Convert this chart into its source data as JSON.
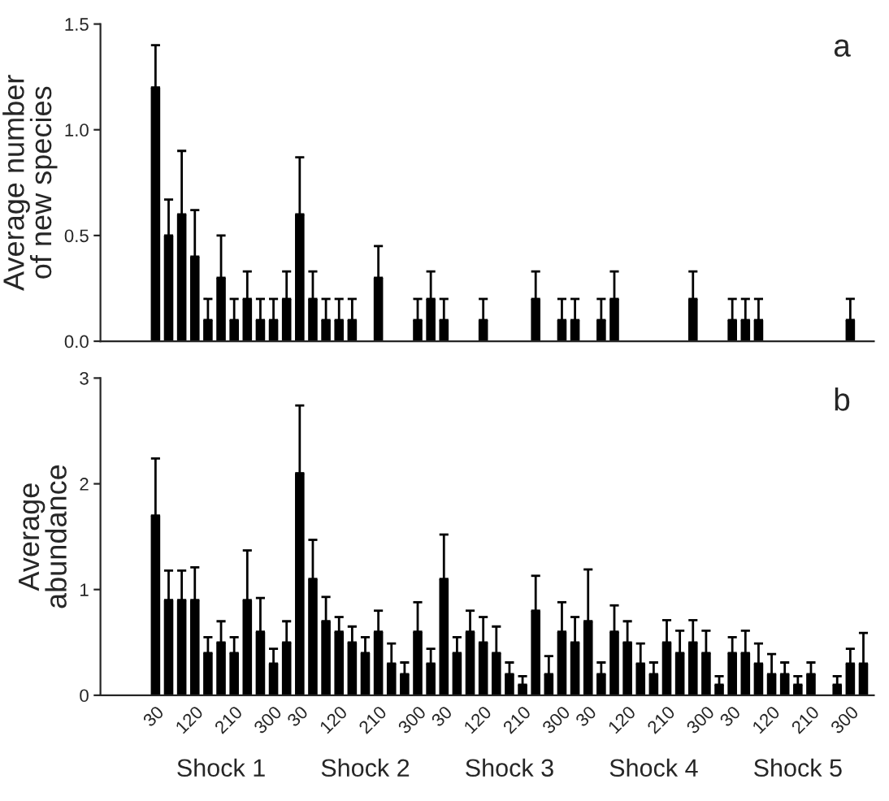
{
  "chart_data": [
    {
      "type": "bar",
      "ylabel": "Average number\nof new species",
      "annotations": [
        "a"
      ],
      "tick_labels": "y",
      "grid": false,
      "legend": false,
      "categories": [
        "30",
        null,
        null,
        "120",
        null,
        null,
        "210",
        null,
        null,
        "300",
        null,
        "30",
        null,
        null,
        "120",
        null,
        null,
        "210",
        null,
        null,
        "300",
        null,
        "30",
        null,
        null,
        "120",
        null,
        null,
        "210",
        null,
        null,
        "300",
        null,
        "30",
        null,
        null,
        "120",
        null,
        null,
        "210",
        null,
        null,
        "300",
        null,
        "30",
        null,
        null,
        "120",
        null,
        null,
        "210",
        null,
        null,
        "300",
        null
      ],
      "series": [
        {
          "color": "#000000",
          "values": [
            1.2,
            0.5,
            0.6,
            0.4,
            0.1,
            0.3,
            0.1,
            0.2,
            0.1,
            0.1,
            0.2,
            0.6,
            0.2,
            0.1,
            0.1,
            0.1,
            0,
            0.3,
            0,
            0,
            0.1,
            0.2,
            0.1,
            0,
            0,
            0.1,
            0,
            0,
            0,
            0.2,
            0,
            0.1,
            0.1,
            0,
            0.1,
            0.2,
            0,
            0,
            0,
            0,
            0,
            0.2,
            0,
            0,
            0.1,
            0.1,
            0.1,
            0,
            0,
            0,
            0,
            0,
            0,
            0.1,
            0
          ],
          "errors": [
            [
              1.2,
              1.4
            ],
            [
              0.5,
              0.67
            ],
            [
              0.6,
              0.9
            ],
            [
              0.4,
              0.62
            ],
            [
              0.1,
              0.2
            ],
            [
              0.3,
              0.5
            ],
            [
              0.1,
              0.2
            ],
            [
              0.2,
              0.33
            ],
            [
              0.1,
              0.2
            ],
            [
              0.1,
              0.2
            ],
            [
              0.2,
              0.33
            ],
            [
              0.6,
              0.87
            ],
            [
              0.2,
              0.33
            ],
            [
              0.1,
              0.2
            ],
            [
              0.1,
              0.2
            ],
            [
              0.1,
              0.2
            ],
            null,
            [
              0.3,
              0.45
            ],
            null,
            null,
            [
              0.1,
              0.2
            ],
            [
              0.2,
              0.33
            ],
            [
              0.1,
              0.2
            ],
            null,
            null,
            [
              0.1,
              0.2
            ],
            null,
            null,
            null,
            [
              0.2,
              0.33
            ],
            null,
            [
              0.1,
              0.2
            ],
            [
              0.1,
              0.2
            ],
            null,
            [
              0.1,
              0.2
            ],
            [
              0.2,
              0.33
            ],
            null,
            null,
            null,
            null,
            null,
            [
              0.2,
              0.33
            ],
            null,
            null,
            [
              0.1,
              0.2
            ],
            [
              0.1,
              0.2
            ],
            [
              0.1,
              0.2
            ],
            null,
            null,
            null,
            null,
            null,
            null,
            [
              0.1,
              0.2
            ],
            null
          ]
        }
      ],
      "ylim": [
        0,
        1.5
      ],
      "yticks": [
        {
          "value": 0,
          "label": "0.0"
        },
        {
          "value": 0.5,
          "label": "0.5"
        },
        {
          "value": 1,
          "label": "1.0"
        },
        {
          "value": 1.5,
          "label": "1.5"
        }
      ]
    },
    {
      "type": "bar",
      "ylabel": "Average\nabundance",
      "annotations": [
        "b",
        "Shock 1",
        "Shock 2",
        "Shock 3",
        "Shock 4",
        "Shock 5"
      ],
      "grid": false,
      "legend": false,
      "categories": [
        "30",
        null,
        null,
        "120",
        null,
        null,
        "210",
        null,
        null,
        "300",
        null,
        "30",
        null,
        null,
        "120",
        null,
        null,
        "210",
        null,
        null,
        "300",
        null,
        "30",
        null,
        null,
        "120",
        null,
        null,
        "210",
        null,
        null,
        "300",
        null,
        "30",
        null,
        null,
        "120",
        null,
        null,
        "210",
        null,
        null,
        "300",
        null,
        "30",
        null,
        null,
        "120",
        null,
        null,
        "210",
        null,
        null,
        "300",
        null
      ],
      "series": [
        {
          "color": "#000000",
          "values": [
            1.7,
            0.9,
            0.9,
            0.9,
            0.4,
            0.5,
            0.4,
            0.9,
            0.6,
            0.3,
            0.5,
            2.1,
            1.1,
            0.7,
            0.6,
            0.5,
            0.4,
            0.6,
            0.3,
            0.2,
            0.6,
            0.3,
            1.1,
            0.4,
            0.6,
            0.5,
            0.4,
            0.2,
            0.1,
            0.8,
            0.2,
            0.6,
            0.5,
            0.7,
            0.2,
            0.6,
            0.5,
            0.3,
            0.2,
            0.5,
            0.4,
            0.5,
            0.4,
            0.1,
            0.4,
            0.4,
            0.3,
            0.2,
            0.2,
            0.1,
            0.2,
            0,
            0.1,
            0.3,
            0.3
          ],
          "errors": [
            [
              1.7,
              2.24
            ],
            [
              0.9,
              1.18
            ],
            [
              0.9,
              1.18
            ],
            [
              0.9,
              1.21
            ],
            [
              0.4,
              0.55
            ],
            [
              0.5,
              0.7
            ],
            [
              0.4,
              0.55
            ],
            [
              0.9,
              1.37
            ],
            [
              0.6,
              0.92
            ],
            [
              0.3,
              0.44
            ],
            [
              0.5,
              0.7
            ],
            [
              2.1,
              2.74
            ],
            [
              1.1,
              1.47
            ],
            [
              0.7,
              0.93
            ],
            [
              0.6,
              0.74
            ],
            [
              0.5,
              0.65
            ],
            [
              0.4,
              0.55
            ],
            [
              0.6,
              0.8
            ],
            [
              0.3,
              0.49
            ],
            [
              0.2,
              0.31
            ],
            [
              0.6,
              0.88
            ],
            [
              0.3,
              0.44
            ],
            [
              1.1,
              1.52
            ],
            [
              0.4,
              0.55
            ],
            [
              0.6,
              0.8
            ],
            [
              0.5,
              0.74
            ],
            [
              0.4,
              0.65
            ],
            [
              0.2,
              0.31
            ],
            [
              0.1,
              0.18
            ],
            [
              0.8,
              1.13
            ],
            [
              0.2,
              0.37
            ],
            [
              0.6,
              0.88
            ],
            [
              0.5,
              0.74
            ],
            [
              0.7,
              1.19
            ],
            [
              0.2,
              0.31
            ],
            [
              0.6,
              0.85
            ],
            [
              0.5,
              0.7
            ],
            [
              0.3,
              0.49
            ],
            [
              0.2,
              0.31
            ],
            [
              0.5,
              0.71
            ],
            [
              0.4,
              0.61
            ],
            [
              0.5,
              0.71
            ],
            [
              0.4,
              0.61
            ],
            [
              0.1,
              0.18
            ],
            [
              0.4,
              0.55
            ],
            [
              0.4,
              0.61
            ],
            [
              0.3,
              0.49
            ],
            [
              0.2,
              0.39
            ],
            [
              0.2,
              0.31
            ],
            [
              0.1,
              0.18
            ],
            [
              0.2,
              0.31
            ],
            null,
            [
              0.1,
              0.18
            ],
            [
              0.3,
              0.44
            ],
            [
              0.3,
              0.59
            ]
          ]
        }
      ],
      "ylim": [
        0,
        3
      ],
      "yticks": [
        0,
        1,
        2,
        3
      ]
    }
  ]
}
